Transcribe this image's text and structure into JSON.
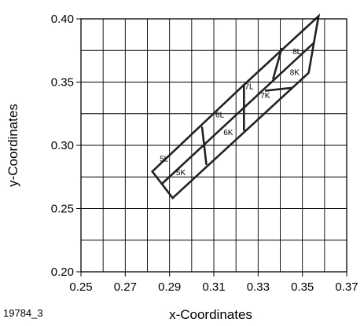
{
  "figure_code": "19784_3",
  "chart_data": {
    "type": "diagram",
    "xlabel": "x-Coordinates",
    "ylabel": "y-Coordinates",
    "xlim": [
      0.25,
      0.37
    ],
    "ylim": [
      0.2,
      0.4
    ],
    "x_ticks": [
      0.25,
      0.27,
      0.29,
      0.31,
      0.33,
      0.35,
      0.37
    ],
    "y_ticks": [
      0.2,
      0.25,
      0.3,
      0.35,
      0.4
    ],
    "x_tick_labels": [
      "0.25",
      "0.27",
      "0.29",
      "0.31",
      "0.33",
      "0.35",
      "0.37"
    ],
    "y_tick_labels": [
      "0.20",
      "0.25",
      "0.30",
      "0.35",
      "0.40"
    ],
    "grid": true,
    "line_color": "#222222",
    "outline": [
      [
        0.2822,
        0.2793
      ],
      [
        0.3236,
        0.3478
      ],
      [
        0.3573,
        0.4022
      ],
      [
        0.3528,
        0.3573
      ],
      [
        0.2914,
        0.2583
      ]
    ],
    "center_line": [
      [
        0.2867,
        0.2698
      ],
      [
        0.3552,
        0.3811
      ]
    ],
    "dividers": [
      [
        [
          0.3047,
          0.3141
        ],
        [
          0.3066,
          0.2852
        ]
      ],
      [
        [
          0.3236,
          0.3478
        ],
        [
          0.3236,
          0.3122
        ]
      ],
      [
        [
          0.3406,
          0.3763
        ],
        [
          0.3368,
          0.3528
        ]
      ],
      [
        [
          0.3335,
          0.3432
        ],
        [
          0.3453,
          0.3455
        ]
      ]
    ],
    "regions": [
      {
        "label": "5L",
        "x": 0.2875,
        "y": 0.2874
      },
      {
        "label": "5K",
        "x": 0.2951,
        "y": 0.2764
      },
      {
        "label": "6L",
        "x": 0.3127,
        "y": 0.322
      },
      {
        "label": "6K",
        "x": 0.3165,
        "y": 0.308
      },
      {
        "label": "7L",
        "x": 0.326,
        "y": 0.3445
      },
      {
        "label": "7K",
        "x": 0.3332,
        "y": 0.3372
      },
      {
        "label": "8L",
        "x": 0.3475,
        "y": 0.372
      },
      {
        "label": "8K",
        "x": 0.3465,
        "y": 0.3555
      }
    ]
  }
}
